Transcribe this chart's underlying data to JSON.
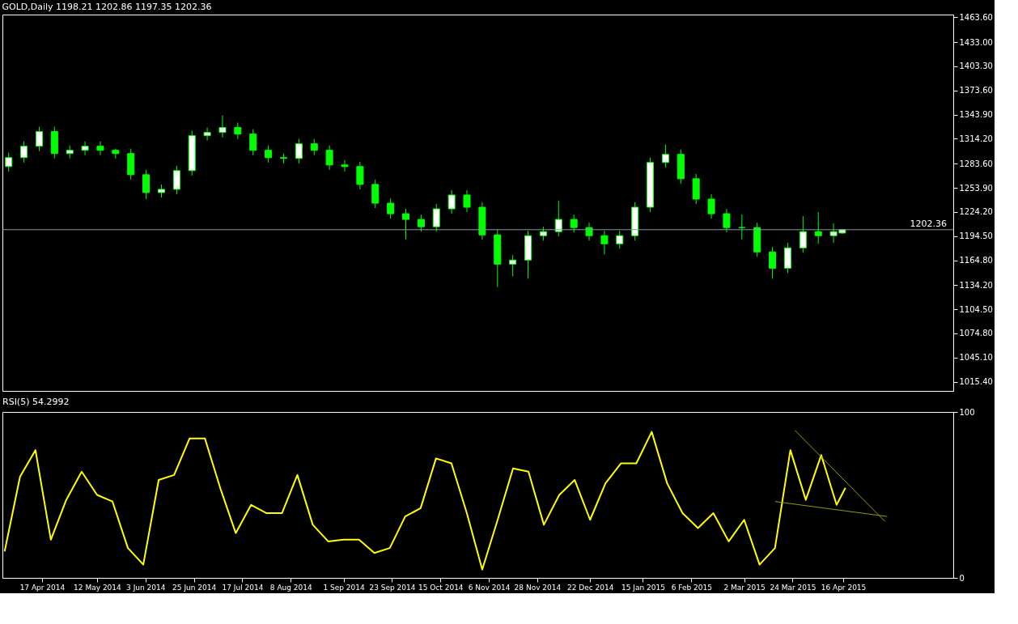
{
  "chart_data": [
    {
      "type": "candlestick",
      "title": "GOLD,Daily  1198.21 1202.86 1197.35 1202.36",
      "tick_labels": "y",
      "grid": false,
      "x": [
        "2014-03-31",
        "2014-04-07",
        "2014-04-14",
        "2014-04-21",
        "2014-04-28",
        "2014-05-05",
        "2014-05-12",
        "2014-05-19",
        "2014-05-26",
        "2014-06-02",
        "2014-06-09",
        "2014-06-16",
        "2014-06-23",
        "2014-06-30",
        "2014-07-07",
        "2014-07-14",
        "2014-07-21",
        "2014-07-28",
        "2014-08-04",
        "2014-08-11",
        "2014-08-18",
        "2014-08-25",
        "2014-09-01",
        "2014-09-08",
        "2014-09-15",
        "2014-09-22",
        "2014-09-29",
        "2014-10-06",
        "2014-10-13",
        "2014-10-20",
        "2014-10-27",
        "2014-11-03",
        "2014-11-10",
        "2014-11-17",
        "2014-11-24",
        "2014-12-01",
        "2014-12-08",
        "2014-12-15",
        "2014-12-22",
        "2014-12-29",
        "2015-01-05",
        "2015-01-12",
        "2015-01-19",
        "2015-01-26",
        "2015-02-02",
        "2015-02-09",
        "2015-02-16",
        "2015-02-23",
        "2015-03-02",
        "2015-03-09",
        "2015-03-16",
        "2015-03-23",
        "2015-03-30",
        "2015-04-06",
        "2015-04-13",
        "2015-04-17"
      ],
      "series": [
        {
          "color": "#00ff00",
          "ohlc": [
            [
              1280,
              1297,
              1274,
              1291
            ],
            [
              1291,
              1311,
              1285,
              1305
            ],
            [
              1305,
              1329,
              1299,
              1323
            ],
            [
              1323,
              1329,
              1290,
              1296
            ],
            [
              1296,
              1306,
              1290,
              1300
            ],
            [
              1300,
              1311,
              1294,
              1305
            ],
            [
              1305,
              1311,
              1294,
              1300
            ],
            [
              1300,
              1302,
              1290,
              1296
            ],
            [
              1296,
              1302,
              1264,
              1270
            ],
            [
              1270,
              1276,
              1240,
              1248
            ],
            [
              1248,
              1258,
              1242,
              1252
            ],
            [
              1252,
              1281,
              1246,
              1275
            ],
            [
              1275,
              1324,
              1269,
              1318
            ],
            [
              1318,
              1328,
              1312,
              1322
            ],
            [
              1322,
              1343,
              1316,
              1328
            ],
            [
              1328,
              1334,
              1314,
              1320
            ],
            [
              1320,
              1326,
              1294,
              1300
            ],
            [
              1300,
              1306,
              1285,
              1291
            ],
            [
              1291,
              1296,
              1284,
              1290
            ],
            [
              1290,
              1314,
              1284,
              1308
            ],
            [
              1308,
              1314,
              1294,
              1300
            ],
            [
              1300,
              1306,
              1276,
              1282
            ],
            [
              1282,
              1288,
              1274,
              1280
            ],
            [
              1280,
              1286,
              1252,
              1258
            ],
            [
              1258,
              1264,
              1229,
              1235
            ],
            [
              1235,
              1241,
              1216,
              1222
            ],
            [
              1222,
              1228,
              1190,
              1215
            ],
            [
              1215,
              1221,
              1200,
              1206
            ],
            [
              1206,
              1234,
              1200,
              1228
            ],
            [
              1228,
              1251,
              1222,
              1245
            ],
            [
              1245,
              1251,
              1224,
              1230
            ],
            [
              1230,
              1236,
              1190,
              1196
            ],
            [
              1196,
              1202,
              1132,
              1160
            ],
            [
              1160,
              1171,
              1145,
              1165
            ],
            [
              1165,
              1201,
              1142,
              1195
            ],
            [
              1195,
              1206,
              1189,
              1200
            ],
            [
              1200,
              1238,
              1194,
              1215
            ],
            [
              1215,
              1221,
              1199,
              1205
            ],
            [
              1205,
              1211,
              1189,
              1195
            ],
            [
              1195,
              1201,
              1172,
              1185
            ],
            [
              1185,
              1201,
              1179,
              1195
            ],
            [
              1195,
              1236,
              1189,
              1230
            ],
            [
              1230,
              1291,
              1224,
              1285
            ],
            [
              1285,
              1307,
              1279,
              1295
            ],
            [
              1295,
              1301,
              1259,
              1265
            ],
            [
              1265,
              1271,
              1234,
              1240
            ],
            [
              1240,
              1246,
              1216,
              1222
            ],
            [
              1222,
              1228,
              1199,
              1205
            ],
            [
              1205,
              1221,
              1190,
              1205
            ],
            [
              1205,
              1211,
              1169,
              1175
            ],
            [
              1175,
              1181,
              1142,
              1155
            ],
            [
              1155,
              1186,
              1149,
              1180
            ],
            [
              1180,
              1219,
              1174,
              1200
            ],
            [
              1200,
              1224,
              1185,
              1195
            ],
            [
              1195,
              1210,
              1186,
              1200
            ],
            [
              1198.21,
              1202.86,
              1197.35,
              1202.36
            ]
          ]
        }
      ],
      "ylim": [
        1004.0,
        1467.0
      ],
      "yticks": [
        {
          "value": 1015.4,
          "label": "1015.40"
        },
        {
          "value": 1045.1,
          "label": "1045.10"
        },
        {
          "value": 1074.8,
          "label": "1074.80"
        },
        {
          "value": 1104.5,
          "label": "1104.50"
        },
        {
          "value": 1134.2,
          "label": "1134.20"
        },
        {
          "value": 1164.8,
          "label": "1164.80"
        },
        {
          "value": 1194.5,
          "label": "1194.50"
        },
        {
          "value": 1224.2,
          "label": "1224.20"
        },
        {
          "value": 1253.9,
          "label": "1253.90"
        },
        {
          "value": 1283.6,
          "label": "1283.60"
        },
        {
          "value": 1314.2,
          "label": "1314.20"
        },
        {
          "value": 1343.9,
          "label": "1343.90"
        },
        {
          "value": 1373.6,
          "label": "1373.60"
        },
        {
          "value": 1403.3,
          "label": "1403.30"
        },
        {
          "value": 1433.0,
          "label": "1433.00"
        },
        {
          "value": 1463.6,
          "label": "1463.60"
        }
      ],
      "xlim": [
        "2014-03-30",
        "2015-06-05"
      ],
      "ref_lines": [
        {
          "axis": "y",
          "value": 1202.36,
          "label": "1202.36",
          "color": "#8a9aae"
        }
      ]
    },
    {
      "type": "line",
      "title": "RSI(5) 54.2992",
      "grid": false,
      "x": [
        "2014-03-31",
        "2014-04-07",
        "2014-04-14",
        "2014-04-21",
        "2014-04-28",
        "2014-05-05",
        "2014-05-12",
        "2014-05-19",
        "2014-05-26",
        "2014-06-02",
        "2014-06-09",
        "2014-06-16",
        "2014-06-23",
        "2014-06-30",
        "2014-07-07",
        "2014-07-14",
        "2014-07-21",
        "2014-07-28",
        "2014-08-04",
        "2014-08-11",
        "2014-08-18",
        "2014-08-25",
        "2014-09-01",
        "2014-09-08",
        "2014-09-15",
        "2014-09-22",
        "2014-09-29",
        "2014-10-06",
        "2014-10-13",
        "2014-10-20",
        "2014-10-27",
        "2014-11-03",
        "2014-11-10",
        "2014-11-17",
        "2014-11-24",
        "2014-12-01",
        "2014-12-08",
        "2014-12-15",
        "2014-12-22",
        "2014-12-29",
        "2015-01-05",
        "2015-01-12",
        "2015-01-19",
        "2015-01-26",
        "2015-02-02",
        "2015-02-09",
        "2015-02-16",
        "2015-02-23",
        "2015-03-02",
        "2015-03-09",
        "2015-03-16",
        "2015-03-23",
        "2015-03-30",
        "2015-04-06",
        "2015-04-13",
        "2015-04-17"
      ],
      "series": [
        {
          "color": "#ffff00",
          "values": [
            16,
            61,
            77,
            23,
            47,
            64,
            50,
            46,
            18,
            8,
            59,
            62,
            84,
            84,
            54,
            27,
            44,
            39,
            39,
            62,
            32,
            22,
            23,
            23,
            15,
            18,
            37,
            42,
            72,
            69,
            39,
            5,
            35,
            66,
            64,
            32,
            50,
            59,
            35,
            57,
            69,
            69,
            88,
            57,
            39,
            30,
            39,
            22,
            35,
            8,
            18,
            77,
            47,
            74,
            44,
            54.3
          ]
        },
        {
          "type": "line",
          "color": "#9a9a00",
          "x": [
            "2015-03-25",
            "2015-05-05"
          ],
          "values": [
            89,
            34
          ]
        },
        {
          "type": "line",
          "color": "#9a9a00",
          "x": [
            "2015-03-16",
            "2015-05-06"
          ],
          "values": [
            46,
            37
          ]
        }
      ],
      "ylim": [
        0,
        100
      ],
      "yticks": [
        0,
        100
      ],
      "xlim": [
        "2014-03-30",
        "2015-06-05"
      ],
      "xticks": [
        {
          "value": "2014-04-17",
          "label": "17 Apr 2014"
        },
        {
          "value": "2014-05-12",
          "label": "12 May 2014"
        },
        {
          "value": "2014-06-03",
          "label": "3 Jun 2014"
        },
        {
          "value": "2014-06-25",
          "label": "25 Jun 2014"
        },
        {
          "value": "2014-07-17",
          "label": "17 Jul 2014"
        },
        {
          "value": "2014-08-08",
          "label": "8 Aug 2014"
        },
        {
          "value": "2014-09-01",
          "label": "1 Sep 2014"
        },
        {
          "value": "2014-09-23",
          "label": "23 Sep 2014"
        },
        {
          "value": "2014-10-15",
          "label": "15 Oct 2014"
        },
        {
          "value": "2014-11-06",
          "label": "6 Nov 2014"
        },
        {
          "value": "2014-11-28",
          "label": "28 Nov 2014"
        },
        {
          "value": "2014-12-22",
          "label": "22 Dec 2014"
        },
        {
          "value": "2015-01-15",
          "label": "15 Jan 2015"
        },
        {
          "value": "2015-02-06",
          "label": "6 Feb 2015"
        },
        {
          "value": "2015-03-02",
          "label": "2 Mar 2015"
        },
        {
          "value": "2015-03-24",
          "label": "24 Mar 2015"
        },
        {
          "value": "2015-04-16",
          "label": "16 Apr 2015"
        }
      ]
    }
  ]
}
